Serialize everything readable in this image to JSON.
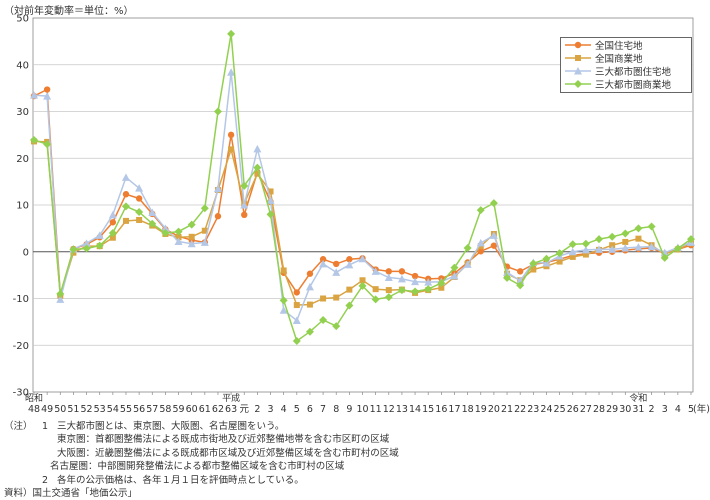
{
  "unit_label": "（対前年変動率＝単位：%）",
  "chart_data": {
    "type": "line",
    "title": "",
    "ylabel": "%",
    "ylim": [
      -30,
      50
    ],
    "yticks": [
      -30,
      -20,
      -10,
      0,
      10,
      20,
      30,
      40,
      50
    ],
    "grid": true,
    "legend_position": "top-right",
    "era_marks": [
      {
        "label": "昭和",
        "index": 0
      },
      {
        "label": "平成",
        "index": 15
      },
      {
        "label": "令和",
        "index": 46
      }
    ],
    "x_unit_label": "(年)",
    "categories": [
      "48",
      "49",
      "50",
      "51",
      "52",
      "53",
      "54",
      "55",
      "56",
      "57",
      "58",
      "59",
      "60",
      "61",
      "62",
      "63",
      "元",
      "2",
      "3",
      "4",
      "5",
      "6",
      "7",
      "8",
      "9",
      "10",
      "11",
      "12",
      "13",
      "14",
      "15",
      "16",
      "17",
      "18",
      "19",
      "20",
      "21",
      "22",
      "23",
      "24",
      "25",
      "26",
      "27",
      "28",
      "29",
      "30",
      "31",
      "2",
      "3",
      "4",
      "5"
    ],
    "series": [
      {
        "name": "全国住宅地",
        "color": "#ed7d31",
        "marker": "circle",
        "values": [
          33.3,
          34.7,
          -9.2,
          0.6,
          1.6,
          3.1,
          6.3,
          12.3,
          11.4,
          8.1,
          4.8,
          3.3,
          2.5,
          2.0,
          7.6,
          25.0,
          7.9,
          17.0,
          10.7,
          -4.5,
          -8.7,
          -4.7,
          -1.6,
          -2.6,
          -1.6,
          -1.4,
          -3.8,
          -4.2,
          -4.2,
          -5.2,
          -5.8,
          -5.7,
          -4.6,
          -2.3,
          0.1,
          1.3,
          -3.2,
          -4.2,
          -2.7,
          -2.3,
          -1.6,
          -0.8,
          -0.4,
          -0.2,
          0.0,
          0.3,
          0.6,
          0.8,
          -0.4,
          0.5,
          1.4
        ]
      },
      {
        "name": "全国商業地",
        "color": "#d9a441",
        "marker": "square",
        "values": [
          23.6,
          23.5,
          -9.4,
          -0.2,
          1.2,
          1.2,
          3.0,
          6.6,
          6.8,
          5.6,
          3.8,
          3.1,
          3.2,
          4.5,
          13.2,
          21.9,
          10.3,
          16.7,
          12.9,
          -4.0,
          -11.4,
          -11.3,
          -10.0,
          -9.8,
          -8.1,
          -6.1,
          -8.0,
          -8.2,
          -8.1,
          -8.8,
          -8.2,
          -7.7,
          -5.4,
          -2.6,
          1.2,
          3.8,
          -4.7,
          -6.1,
          -3.8,
          -3.1,
          -2.1,
          -1.1,
          -0.6,
          0.4,
          1.4,
          2.1,
          2.8,
          1.4,
          -0.5,
          0.5,
          1.8
        ]
      },
      {
        "name": "三大都市圏住宅地",
        "color": "#b4c7e7",
        "marker": "triangle",
        "values": [
          33.5,
          33.3,
          -10.2,
          0.6,
          1.8,
          3.5,
          7.9,
          15.9,
          13.6,
          8.4,
          5.0,
          2.2,
          1.7,
          2.0,
          13.5,
          38.4,
          10.0,
          22.0,
          11.0,
          -12.5,
          -14.7,
          -7.5,
          -2.6,
          -4.4,
          -2.8,
          -1.5,
          -4.2,
          -5.5,
          -5.8,
          -6.4,
          -6.5,
          -6.4,
          -5.2,
          -2.7,
          1.9,
          3.5,
          -4.4,
          -6.2,
          -2.3,
          -2.4,
          -0.9,
          0.0,
          0.4,
          0.5,
          0.5,
          0.8,
          1.0,
          1.1,
          -0.2,
          0.9,
          2.0
        ]
      },
      {
        "name": "三大都市圏商業地",
        "color": "#92d050",
        "marker": "diamond",
        "values": [
          23.9,
          23.0,
          -9.0,
          0.5,
          0.7,
          1.3,
          4.0,
          9.7,
          8.5,
          6.0,
          4.0,
          4.3,
          5.8,
          9.3,
          30.0,
          46.6,
          14.1,
          18.0,
          8.0,
          -10.4,
          -19.1,
          -17.1,
          -14.6,
          -15.9,
          -11.5,
          -7.3,
          -10.2,
          -9.7,
          -8.2,
          -8.5,
          -8.0,
          -6.7,
          -3.4,
          0.8,
          8.9,
          10.4,
          -5.6,
          -7.2,
          -2.5,
          -1.5,
          -0.3,
          1.6,
          1.7,
          2.7,
          3.2,
          3.9,
          5.0,
          5.4,
          -1.3,
          0.7,
          2.7
        ]
      }
    ]
  },
  "notes": {
    "label": "（注）",
    "items": [
      {
        "num": "1",
        "text": "三大都市圏とは、東京圏、大阪圏、名古屋圏をいう。"
      },
      {
        "num": "",
        "text": "東京圏：首都圏整備法による既成市街地及び近郊整備地帯を含む市区町の区域"
      },
      {
        "num": "",
        "text": "大阪圏：近畿圏整備法による既成都市区域及び近郊整備区域を含む市町村の区域"
      },
      {
        "num": "",
        "text": "名古屋圏：中部圏開発整備法による都市整備区域を含む市町村の区域"
      },
      {
        "num": "2",
        "text": "各年の公示価格は、各年１月１日を評価時点としている。"
      }
    ],
    "source_label": "資料）",
    "source_text": "国土交通省「地価公示」"
  }
}
